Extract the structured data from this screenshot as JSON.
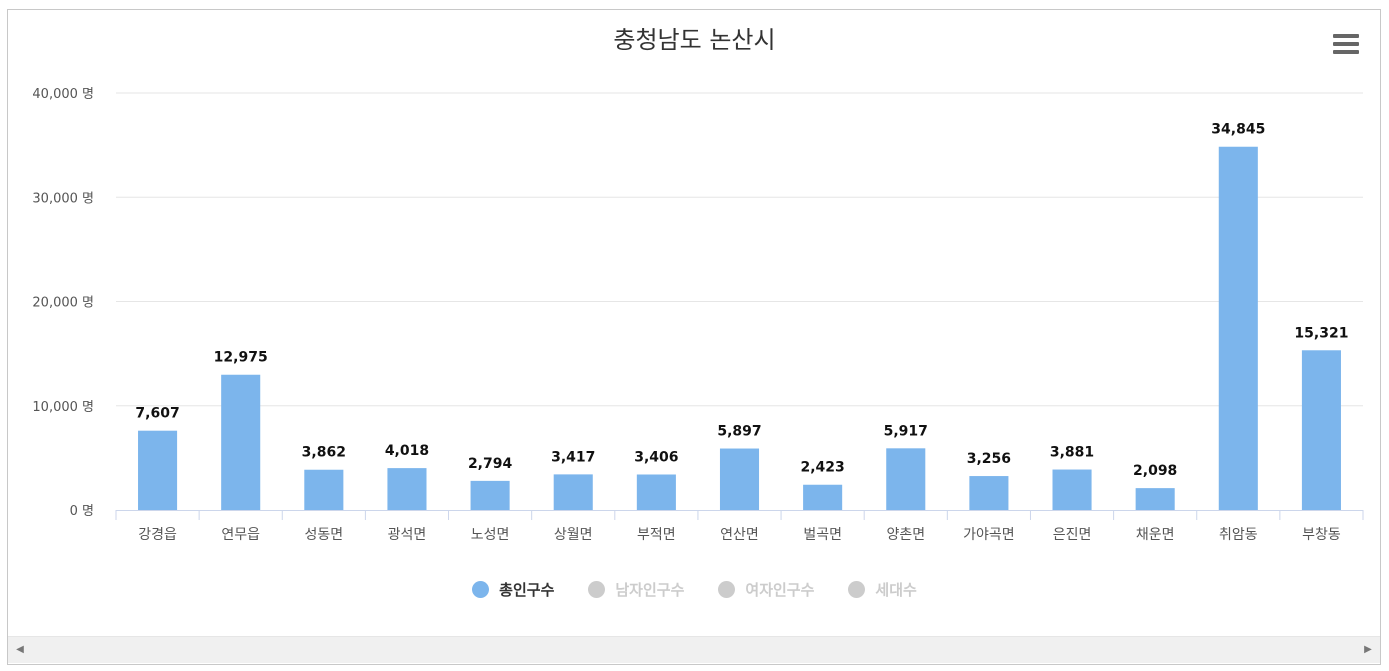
{
  "chart_data": {
    "type": "bar",
    "title": "충청남도 논산시",
    "categories": [
      "강경읍",
      "연무읍",
      "성동면",
      "광석면",
      "노성면",
      "상월면",
      "부적면",
      "연산면",
      "벌곡면",
      "양촌면",
      "가야곡면",
      "은진면",
      "채운면",
      "취암동",
      "부창동"
    ],
    "series": [
      {
        "name": "총인구수",
        "values": [
          7607,
          12975,
          3862,
          4018,
          2794,
          3417,
          3406,
          5897,
          2423,
          5917,
          3256,
          3881,
          2098,
          34845,
          15321
        ],
        "value_labels": [
          "7,607",
          "12,975",
          "3,862",
          "4,018",
          "2,794",
          "3,417",
          "3,406",
          "5,897",
          "2,423",
          "5,917",
          "3,256",
          "3,881",
          "2,098",
          "34,845",
          "15,321"
        ]
      }
    ],
    "yaxis": {
      "ylim": [
        0,
        40000
      ],
      "ticks": [
        0,
        10000,
        20000,
        30000,
        40000
      ],
      "tick_labels": [
        "0 명",
        "10,000 명",
        "20,000 명",
        "30,000 명",
        "40,000 명"
      ]
    },
    "grid": true,
    "legend": {
      "placement": "bottom-center",
      "entries": [
        {
          "label": "총인구수",
          "active": true
        },
        {
          "label": "남자인구수",
          "active": false
        },
        {
          "label": "여자인구수",
          "active": false
        },
        {
          "label": "세대수",
          "active": false
        }
      ]
    }
  },
  "colors": {
    "bar": "#7cb5ec",
    "inactive": "#cccccc",
    "active_text": "#333333",
    "inactive_text": "#cccccc",
    "grid": "#e6e6e6",
    "axis": "#ccd6eb"
  },
  "icons": {
    "menu": "hamburger-menu-icon",
    "scroll_left": "arrow-left-icon",
    "scroll_right": "arrow-right-icon"
  }
}
